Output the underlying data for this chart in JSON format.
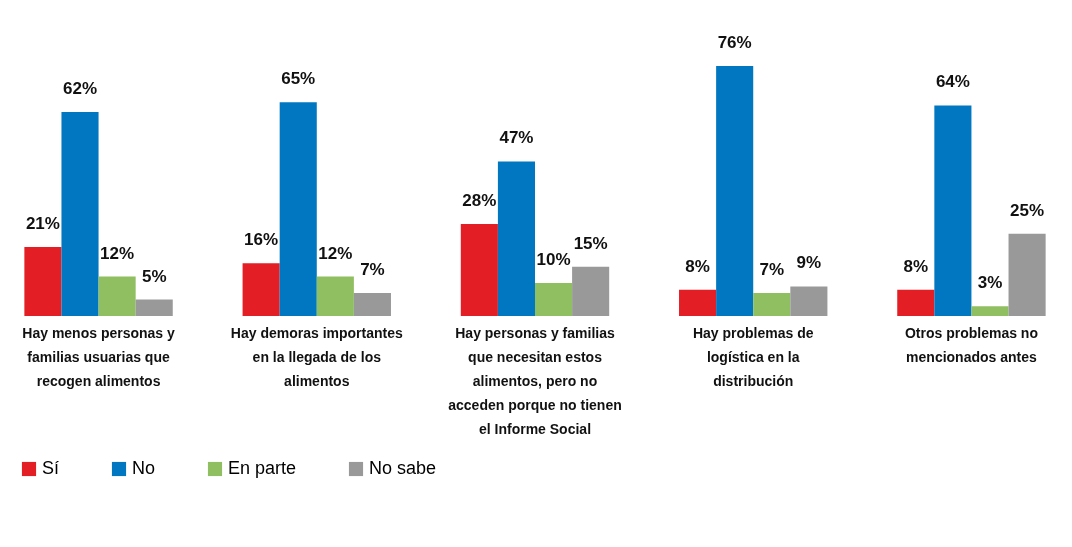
{
  "chart_data": {
    "type": "bar",
    "categories": [
      "Hay menos personas y familias usuarias que recogen alimentos",
      "Hay demoras importantes en la llegada de los alimentos",
      "Hay personas y familias que necesitan estos alimentos, pero no acceden porque no tienen el Informe Social",
      "Hay problemas de logística en la distribución",
      "Otros problemas no mencionados antes"
    ],
    "series": [
      {
        "name": "Sí",
        "color": "#e31e24",
        "values": [
          21,
          16,
          28,
          8,
          8
        ],
        "value_labels": [
          "21%",
          "16%",
          "28%",
          "8%",
          "8%"
        ]
      },
      {
        "name": "No",
        "color": "#0077c0",
        "values": [
          62,
          65,
          47,
          76,
          64
        ],
        "value_labels": [
          "62%",
          "65%",
          "47%",
          "76%",
          "64%"
        ]
      },
      {
        "name": "En parte",
        "color": "#8fbf60",
        "values": [
          12,
          12,
          10,
          7,
          3
        ],
        "value_labels": [
          "12%",
          "12%",
          "10%",
          "7%",
          "3%"
        ]
      },
      {
        "name": "No sabe",
        "color": "#999999",
        "values": [
          5,
          7,
          15,
          9,
          25
        ],
        "value_labels": [
          "5%",
          "7%",
          "15%",
          "9%",
          "25%"
        ]
      }
    ],
    "legend": "bottom left",
    "grid": false
  }
}
